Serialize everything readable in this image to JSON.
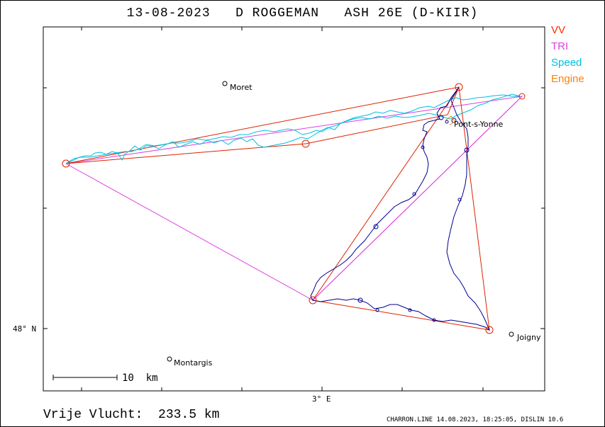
{
  "title": "13-08-2023   D ROGGEMAN   ASH 26E (D-KIIR)",
  "legend": [
    {
      "label": "VV",
      "color": "#ff2a00"
    },
    {
      "label": "TRI",
      "color": "#e040e0"
    },
    {
      "label": "Speed",
      "color": "#00c0e0"
    },
    {
      "label": "Engine",
      "color": "#ff8000"
    }
  ],
  "axes": {
    "lat_label": "48° N",
    "lon_label": "3° E"
  },
  "places": {
    "moret": "Moret",
    "pont": "Pont-s-Yonne",
    "montargis": "Montargis",
    "joigny": "Joigny"
  },
  "scale_label": "10  km",
  "distance_text": "Vrije Vlucht:  233.5 km",
  "footer": "CHARRON.LINE 14.08.2023, 18:25:05, DISLIN 10.6",
  "colors": {
    "track": "#000090",
    "task": "#dd2200",
    "tri": "#e040e0",
    "speed": "#00c0e0"
  }
}
